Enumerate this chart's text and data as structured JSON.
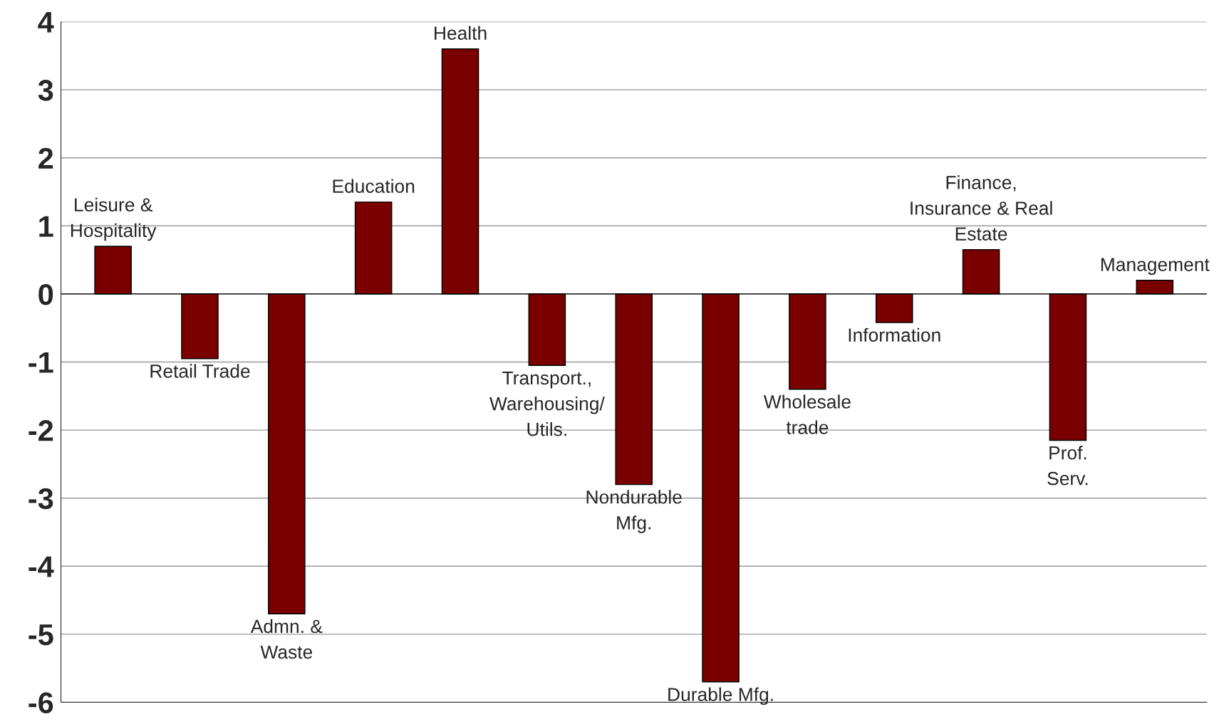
{
  "chart_data": {
    "type": "bar",
    "categories": [
      "Leisure &\nHospitality",
      "Retail Trade",
      "Admn. &\nWaste",
      "Education",
      "Health",
      "Transport.,\nWarehousing/\nUtils.",
      "Nondurable\nMfg.",
      "Durable Mfg.",
      "Wholesale\ntrade",
      "Information",
      "Finance,\nInsurance & Real\nEstate",
      "Prof.\nServ.",
      "Management"
    ],
    "values": [
      0.7,
      -0.95,
      -4.7,
      1.35,
      3.6,
      -1.05,
      -2.8,
      -5.7,
      -1.4,
      -0.42,
      0.65,
      -2.15,
      0.2
    ],
    "color": "#7a0000",
    "ylim": [
      -6,
      4
    ],
    "yticks": [
      -6,
      -5,
      -4,
      -3,
      -2,
      -1,
      0,
      1,
      2,
      3,
      4
    ],
    "grid": "y"
  }
}
